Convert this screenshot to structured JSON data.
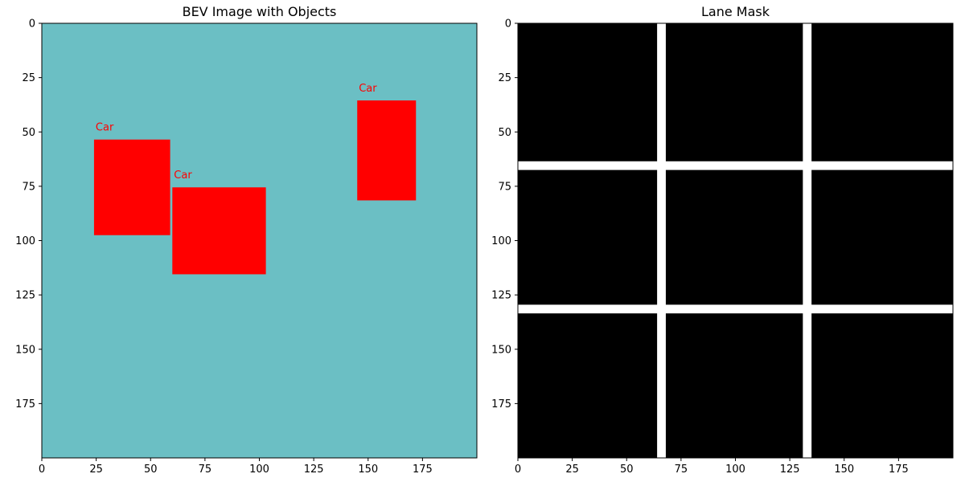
{
  "chart_data": [
    {
      "type": "heatmap",
      "title": "BEV Image with Objects",
      "xlim": [
        0,
        200
      ],
      "ylim": [
        200,
        0
      ],
      "x_ticks": [
        0,
        25,
        50,
        75,
        100,
        125,
        150,
        175
      ],
      "y_ticks": [
        0,
        25,
        50,
        75,
        100,
        125,
        150,
        175
      ],
      "background_color": "#6bbfc4",
      "object_color": "#ff0000",
      "objects": [
        {
          "label": "Car",
          "x": [
            24,
            59
          ],
          "y": [
            53.5,
            97.5
          ]
        },
        {
          "label": "Car",
          "x": [
            60,
            103
          ],
          "y": [
            75.5,
            115.5
          ]
        },
        {
          "label": "Car",
          "x": [
            145,
            172
          ],
          "y": [
            35.5,
            81.5
          ]
        }
      ]
    },
    {
      "type": "heatmap",
      "title": "Lane Mask",
      "xlim": [
        0,
        200
      ],
      "ylim": [
        200,
        0
      ],
      "x_ticks": [
        0,
        25,
        50,
        75,
        100,
        125,
        150,
        175
      ],
      "y_ticks": [
        0,
        25,
        50,
        75,
        100,
        125,
        150,
        175
      ],
      "background_color": "#000000",
      "lane_color": "#ffffff",
      "vertical_lanes": [
        [
          64,
          68
        ],
        [
          131,
          135
        ]
      ],
      "horizontal_lanes": [
        [
          63.5,
          67.5
        ],
        [
          129.5,
          133.5
        ]
      ]
    }
  ]
}
